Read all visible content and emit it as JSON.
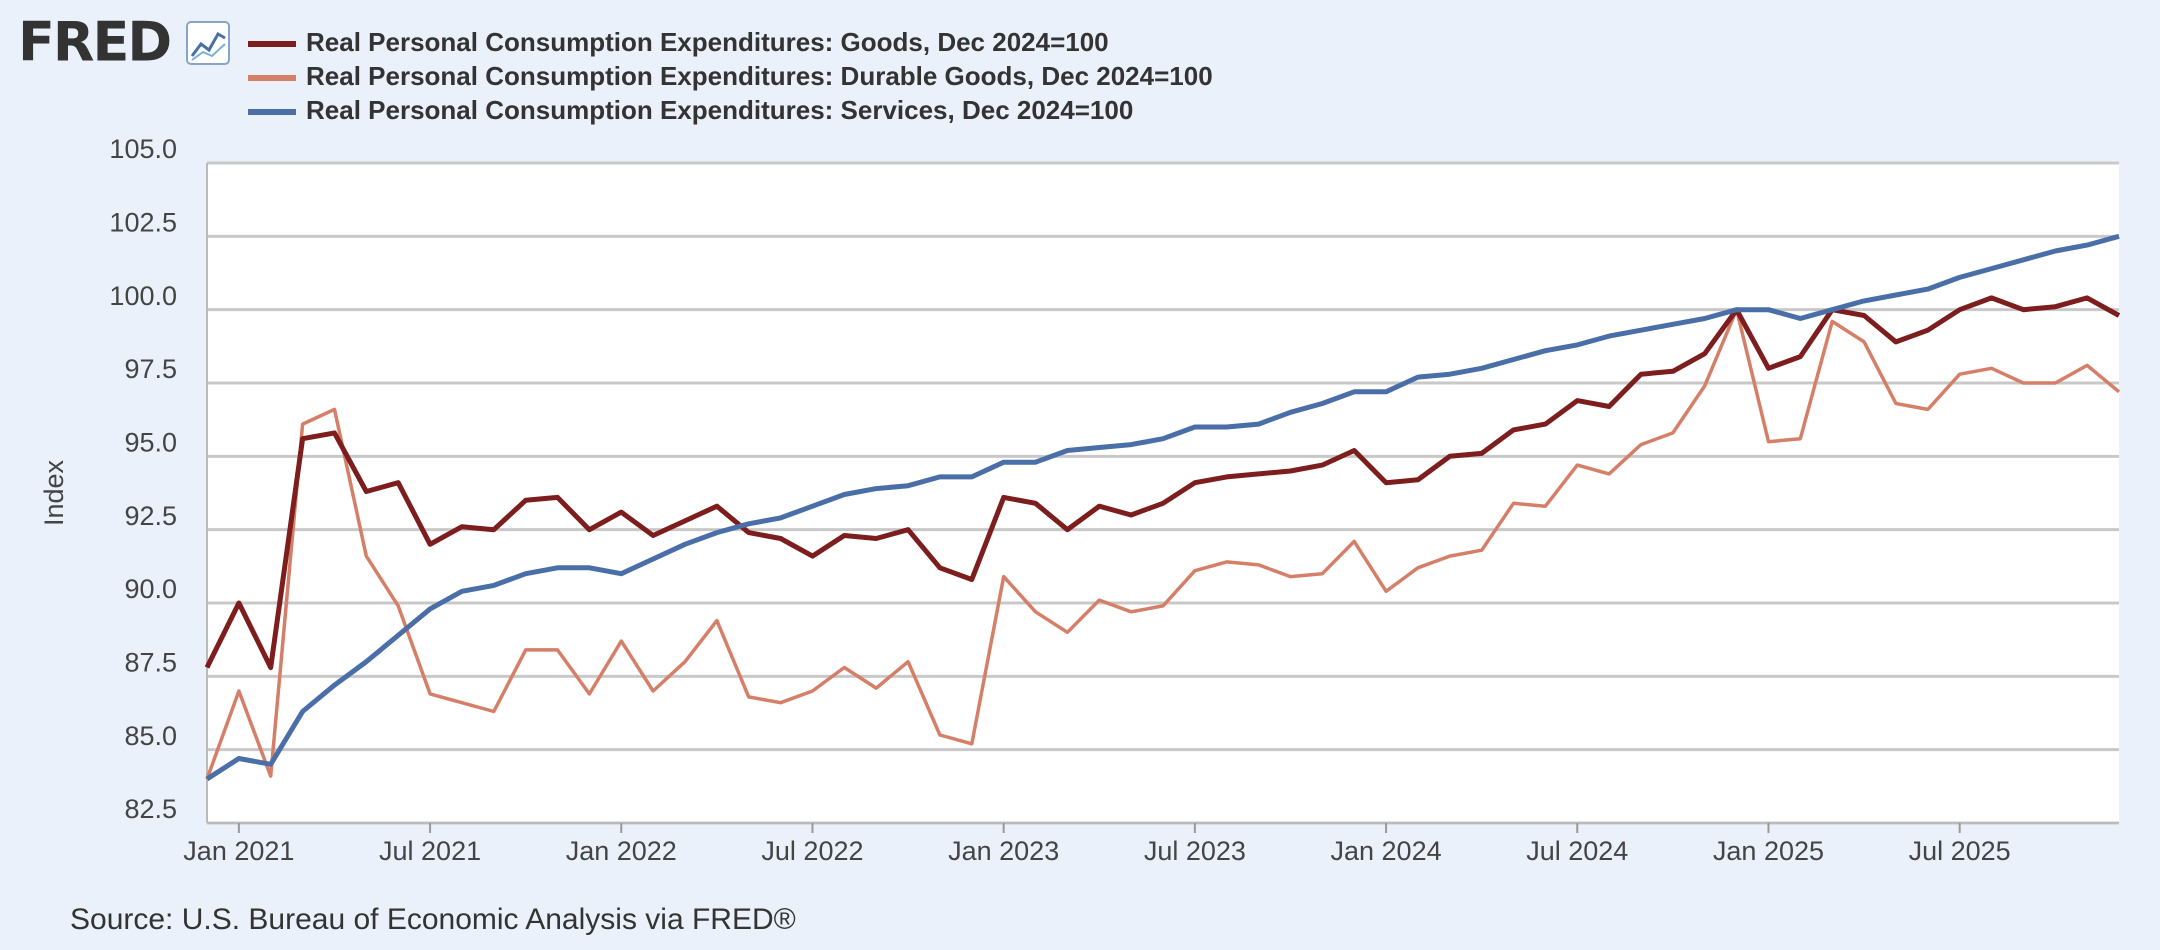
{
  "logo": "FRED",
  "chart_data": {
    "type": "line",
    "y_label": "Index",
    "source": "Source: U.S. Bureau of Economic Analysis via FRED®",
    "x": [
      "2020-12",
      "2021-01",
      "2021-02",
      "2021-03",
      "2021-04",
      "2021-05",
      "2021-06",
      "2021-07",
      "2021-08",
      "2021-09",
      "2021-10",
      "2021-11",
      "2021-12",
      "2022-01",
      "2022-02",
      "2022-03",
      "2022-04",
      "2022-05",
      "2022-06",
      "2022-07",
      "2022-08",
      "2022-09",
      "2022-10",
      "2022-11",
      "2022-12",
      "2023-01",
      "2023-02",
      "2023-03",
      "2023-04",
      "2023-05",
      "2023-06",
      "2023-07",
      "2023-08",
      "2023-09",
      "2023-10",
      "2023-11",
      "2023-12",
      "2024-01",
      "2024-02",
      "2024-03",
      "2024-04",
      "2024-05",
      "2024-06",
      "2024-07",
      "2024-08",
      "2024-09",
      "2024-10",
      "2024-11",
      "2024-12",
      "2025-01",
      "2025-02",
      "2025-03",
      "2025-04",
      "2025-05",
      "2025-06",
      "2025-07",
      "2025-08",
      "2025-09",
      "2025-10",
      "2025-11",
      "2025-12"
    ],
    "xlim": [
      "2020-12",
      "2025-12"
    ],
    "xticks": [
      {
        "value": "2021-01",
        "label": "Jan 2021"
      },
      {
        "value": "2021-07",
        "label": "Jul 2021"
      },
      {
        "value": "2022-01",
        "label": "Jan 2022"
      },
      {
        "value": "2022-07",
        "label": "Jul 2022"
      },
      {
        "value": "2023-01",
        "label": "Jan 2023"
      },
      {
        "value": "2023-07",
        "label": "Jul 2023"
      },
      {
        "value": "2024-01",
        "label": "Jan 2024"
      },
      {
        "value": "2024-07",
        "label": "Jul 2024"
      },
      {
        "value": "2025-01",
        "label": "Jan 2025"
      },
      {
        "value": "2025-07",
        "label": "Jul 2025"
      }
    ],
    "ylim": [
      82.5,
      105
    ],
    "yticks": [
      {
        "value": 82.5,
        "label": "82.5"
      },
      {
        "value": 85,
        "label": "85.0"
      },
      {
        "value": 87.5,
        "label": "87.5"
      },
      {
        "value": 90,
        "label": "90.0"
      },
      {
        "value": 92.5,
        "label": "92.5"
      },
      {
        "value": 95,
        "label": "95.0"
      },
      {
        "value": 97.5,
        "label": "97.5"
      },
      {
        "value": 100,
        "label": "100.0"
      },
      {
        "value": 102.5,
        "label": "102.5"
      },
      {
        "value": 105,
        "label": "105.0"
      }
    ],
    "grid": true,
    "series": [
      {
        "name": "Real Personal Consumption Expenditures: Goods, Dec 2024=100",
        "color": "#7d1d1d",
        "width": 5,
        "values": [
          87.8,
          90.0,
          87.8,
          95.6,
          95.8,
          93.8,
          94.1,
          92.0,
          92.6,
          92.5,
          93.5,
          93.6,
          92.5,
          93.1,
          92.3,
          92.8,
          93.3,
          92.4,
          92.2,
          91.6,
          92.3,
          92.2,
          92.5,
          91.2,
          90.8,
          93.6,
          93.4,
          92.5,
          93.3,
          93.0,
          93.4,
          94.1,
          94.3,
          94.4,
          94.5,
          94.7,
          95.2,
          94.1,
          94.2,
          95.0,
          95.1,
          95.9,
          96.1,
          96.9,
          96.7,
          97.8,
          97.9,
          98.5,
          100.0,
          98.0,
          98.4,
          100.0,
          99.8,
          98.9,
          99.3,
          100.0,
          100.4,
          100.0,
          100.1,
          100.4,
          99.8
        ]
      },
      {
        "name": "Real Personal Consumption Expenditures: Durable Goods, Dec 2024=100",
        "color": "#d57f68",
        "width": 3.5,
        "values": [
          84.0,
          87.0,
          84.1,
          96.1,
          96.6,
          91.6,
          89.9,
          86.9,
          86.6,
          86.3,
          88.4,
          88.4,
          86.9,
          88.7,
          87.0,
          88.0,
          89.4,
          86.8,
          86.6,
          87.0,
          87.8,
          87.1,
          88.0,
          85.5,
          85.2,
          90.9,
          89.7,
          89.0,
          90.1,
          89.7,
          89.9,
          91.1,
          91.4,
          91.3,
          90.9,
          91.0,
          92.1,
          90.4,
          91.2,
          91.6,
          91.8,
          93.4,
          93.3,
          94.7,
          94.4,
          95.4,
          95.8,
          97.4,
          100.0,
          95.5,
          95.6,
          99.6,
          98.9,
          96.8,
          96.6,
          97.8,
          98.0,
          97.5,
          97.5,
          98.1,
          97.2
        ]
      },
      {
        "name": "Real Personal Consumption Expenditures: Services, Dec 2024=100",
        "color": "#4a6ea8",
        "width": 5,
        "values": [
          84.0,
          84.7,
          84.5,
          86.3,
          87.2,
          88.0,
          88.9,
          89.8,
          90.4,
          90.6,
          91.0,
          91.2,
          91.2,
          91.0,
          91.5,
          92.0,
          92.4,
          92.7,
          92.9,
          93.3,
          93.7,
          93.9,
          94.0,
          94.3,
          94.3,
          94.8,
          94.8,
          95.2,
          95.3,
          95.4,
          95.6,
          96.0,
          96.0,
          96.1,
          96.5,
          96.8,
          97.2,
          97.2,
          97.7,
          97.8,
          98.0,
          98.3,
          98.6,
          98.8,
          99.1,
          99.3,
          99.5,
          99.7,
          100.0,
          100.0,
          99.7,
          100.0,
          100.3,
          100.5,
          100.7,
          101.1,
          101.4,
          101.7,
          102.0,
          102.2,
          102.5
        ]
      }
    ]
  }
}
